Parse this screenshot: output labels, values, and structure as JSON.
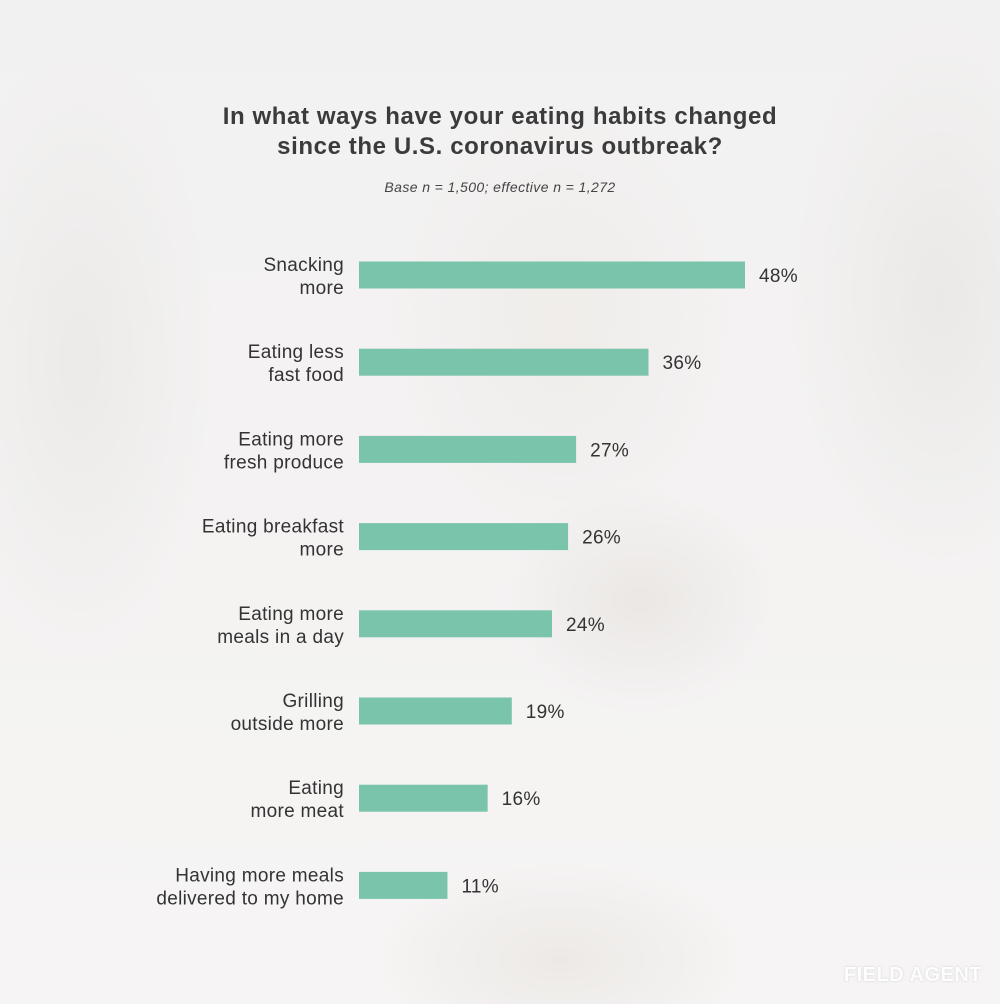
{
  "chart_data": {
    "type": "bar",
    "orientation": "horizontal",
    "title": "In what ways have your eating habits changed\nsince the U.S. coronavirus outbreak?",
    "subtitle": "Base n = 1,500; effective n = 1,272",
    "categories": [
      [
        "Snacking",
        "more"
      ],
      [
        "Eating less",
        "fast food"
      ],
      [
        "Eating more",
        "fresh produce"
      ],
      [
        "Eating breakfast",
        "more"
      ],
      [
        "Eating more",
        "meals in a day"
      ],
      [
        "Grilling",
        "outside more"
      ],
      [
        "Eating",
        "more meat"
      ],
      [
        "Having more meals",
        "delivered to my home"
      ]
    ],
    "values": [
      48,
      36,
      27,
      26,
      24,
      19,
      16,
      11
    ],
    "value_labels": [
      "48%",
      "36%",
      "27%",
      "26%",
      "24%",
      "19%",
      "16%",
      "11%"
    ],
    "unit": "%",
    "xlim": [
      0,
      48
    ],
    "grid": false,
    "bar_color": "#7bc4ac"
  },
  "branding": {
    "logo_text": "FIELD AGENT"
  }
}
